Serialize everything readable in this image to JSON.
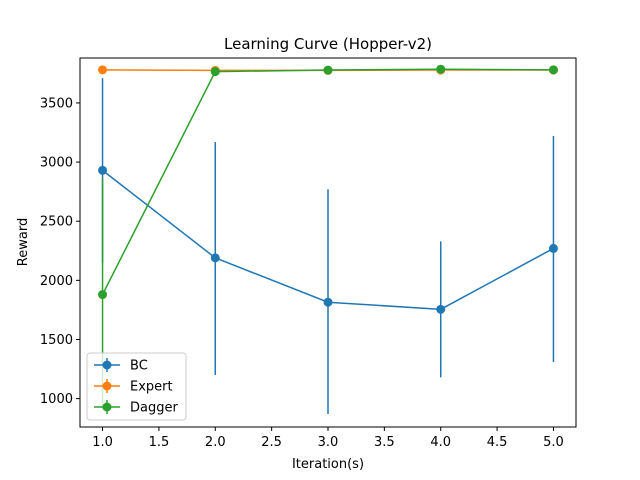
{
  "chart_data": {
    "type": "line",
    "title": "Learning Curve (Hopper-v2)",
    "xlabel": "Iteration(s)",
    "ylabel": "Reward",
    "x": [
      1,
      2,
      3,
      4,
      5
    ],
    "xlim": [
      0.8,
      5.2
    ],
    "ylim": [
      760,
      3880
    ],
    "xticks": [
      "1.0",
      "1.5",
      "2.0",
      "2.5",
      "3.0",
      "3.5",
      "4.0",
      "4.5",
      "5.0"
    ],
    "yticks": [
      "1000",
      "1500",
      "2000",
      "2500",
      "3000",
      "3500"
    ],
    "grid": false,
    "legend_position": "lower-left",
    "series": [
      {
        "name": "BC",
        "color": "#1f77b4",
        "values": [
          2930,
          2190,
          1815,
          1755,
          2270
        ],
        "yerr_low": [
          2150,
          1200,
          870,
          1180,
          1310
        ],
        "yerr_high": [
          3710,
          3170,
          2770,
          2330,
          3220
        ]
      },
      {
        "name": "Expert",
        "color": "#ff7f0e",
        "values": [
          3780,
          3775,
          3775,
          3778,
          3778
        ],
        "yerr_low": [
          3770,
          3765,
          3765,
          3768,
          3768
        ],
        "yerr_high": [
          3790,
          3785,
          3785,
          3788,
          3788
        ]
      },
      {
        "name": "Dagger",
        "color": "#2ca02c",
        "values": [
          1880,
          3765,
          3778,
          3785,
          3780
        ],
        "yerr_low": [
          900,
          3755,
          3768,
          3775,
          3770
        ],
        "yerr_high": [
          2860,
          3775,
          3788,
          3795,
          3790
        ]
      }
    ]
  }
}
